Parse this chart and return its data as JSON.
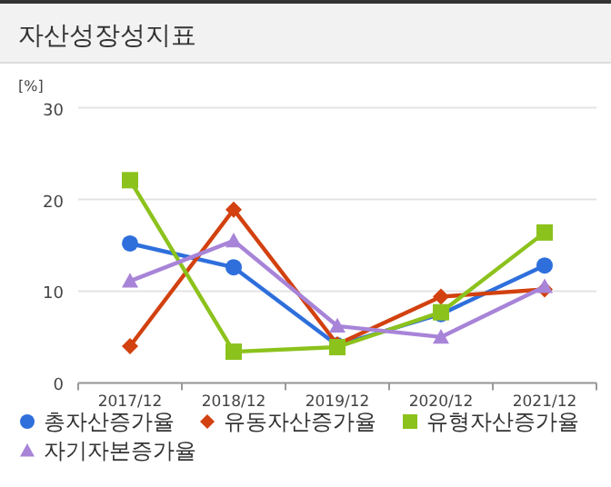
{
  "chart_data": {
    "type": "line",
    "title": "자산성장성지표",
    "ylabel": "[%]",
    "categories": [
      "2017/12",
      "2018/12",
      "2019/12",
      "2020/12",
      "2021/12"
    ],
    "series": [
      {
        "name": "총자산증가율",
        "color": "#2e6fdc",
        "marker": "circle",
        "values": [
          15.2,
          12.6,
          4.1,
          7.5,
          12.8
        ]
      },
      {
        "name": "유동자산증가율",
        "color": "#d2410f",
        "marker": "diamond",
        "values": [
          4.0,
          18.9,
          4.2,
          9.4,
          10.2
        ]
      },
      {
        "name": "유형자산증가율",
        "color": "#8cc21c",
        "marker": "square",
        "values": [
          22.1,
          3.4,
          3.9,
          7.7,
          16.4
        ]
      },
      {
        "name": "자기자본증가율",
        "color": "#a884d8",
        "marker": "triangle",
        "values": [
          11.1,
          15.5,
          6.2,
          5.0,
          10.5
        ]
      }
    ],
    "ylim": [
      0,
      30
    ],
    "yticks": [
      0,
      10,
      20,
      30
    ],
    "grid": "y",
    "legend": "bottom"
  }
}
